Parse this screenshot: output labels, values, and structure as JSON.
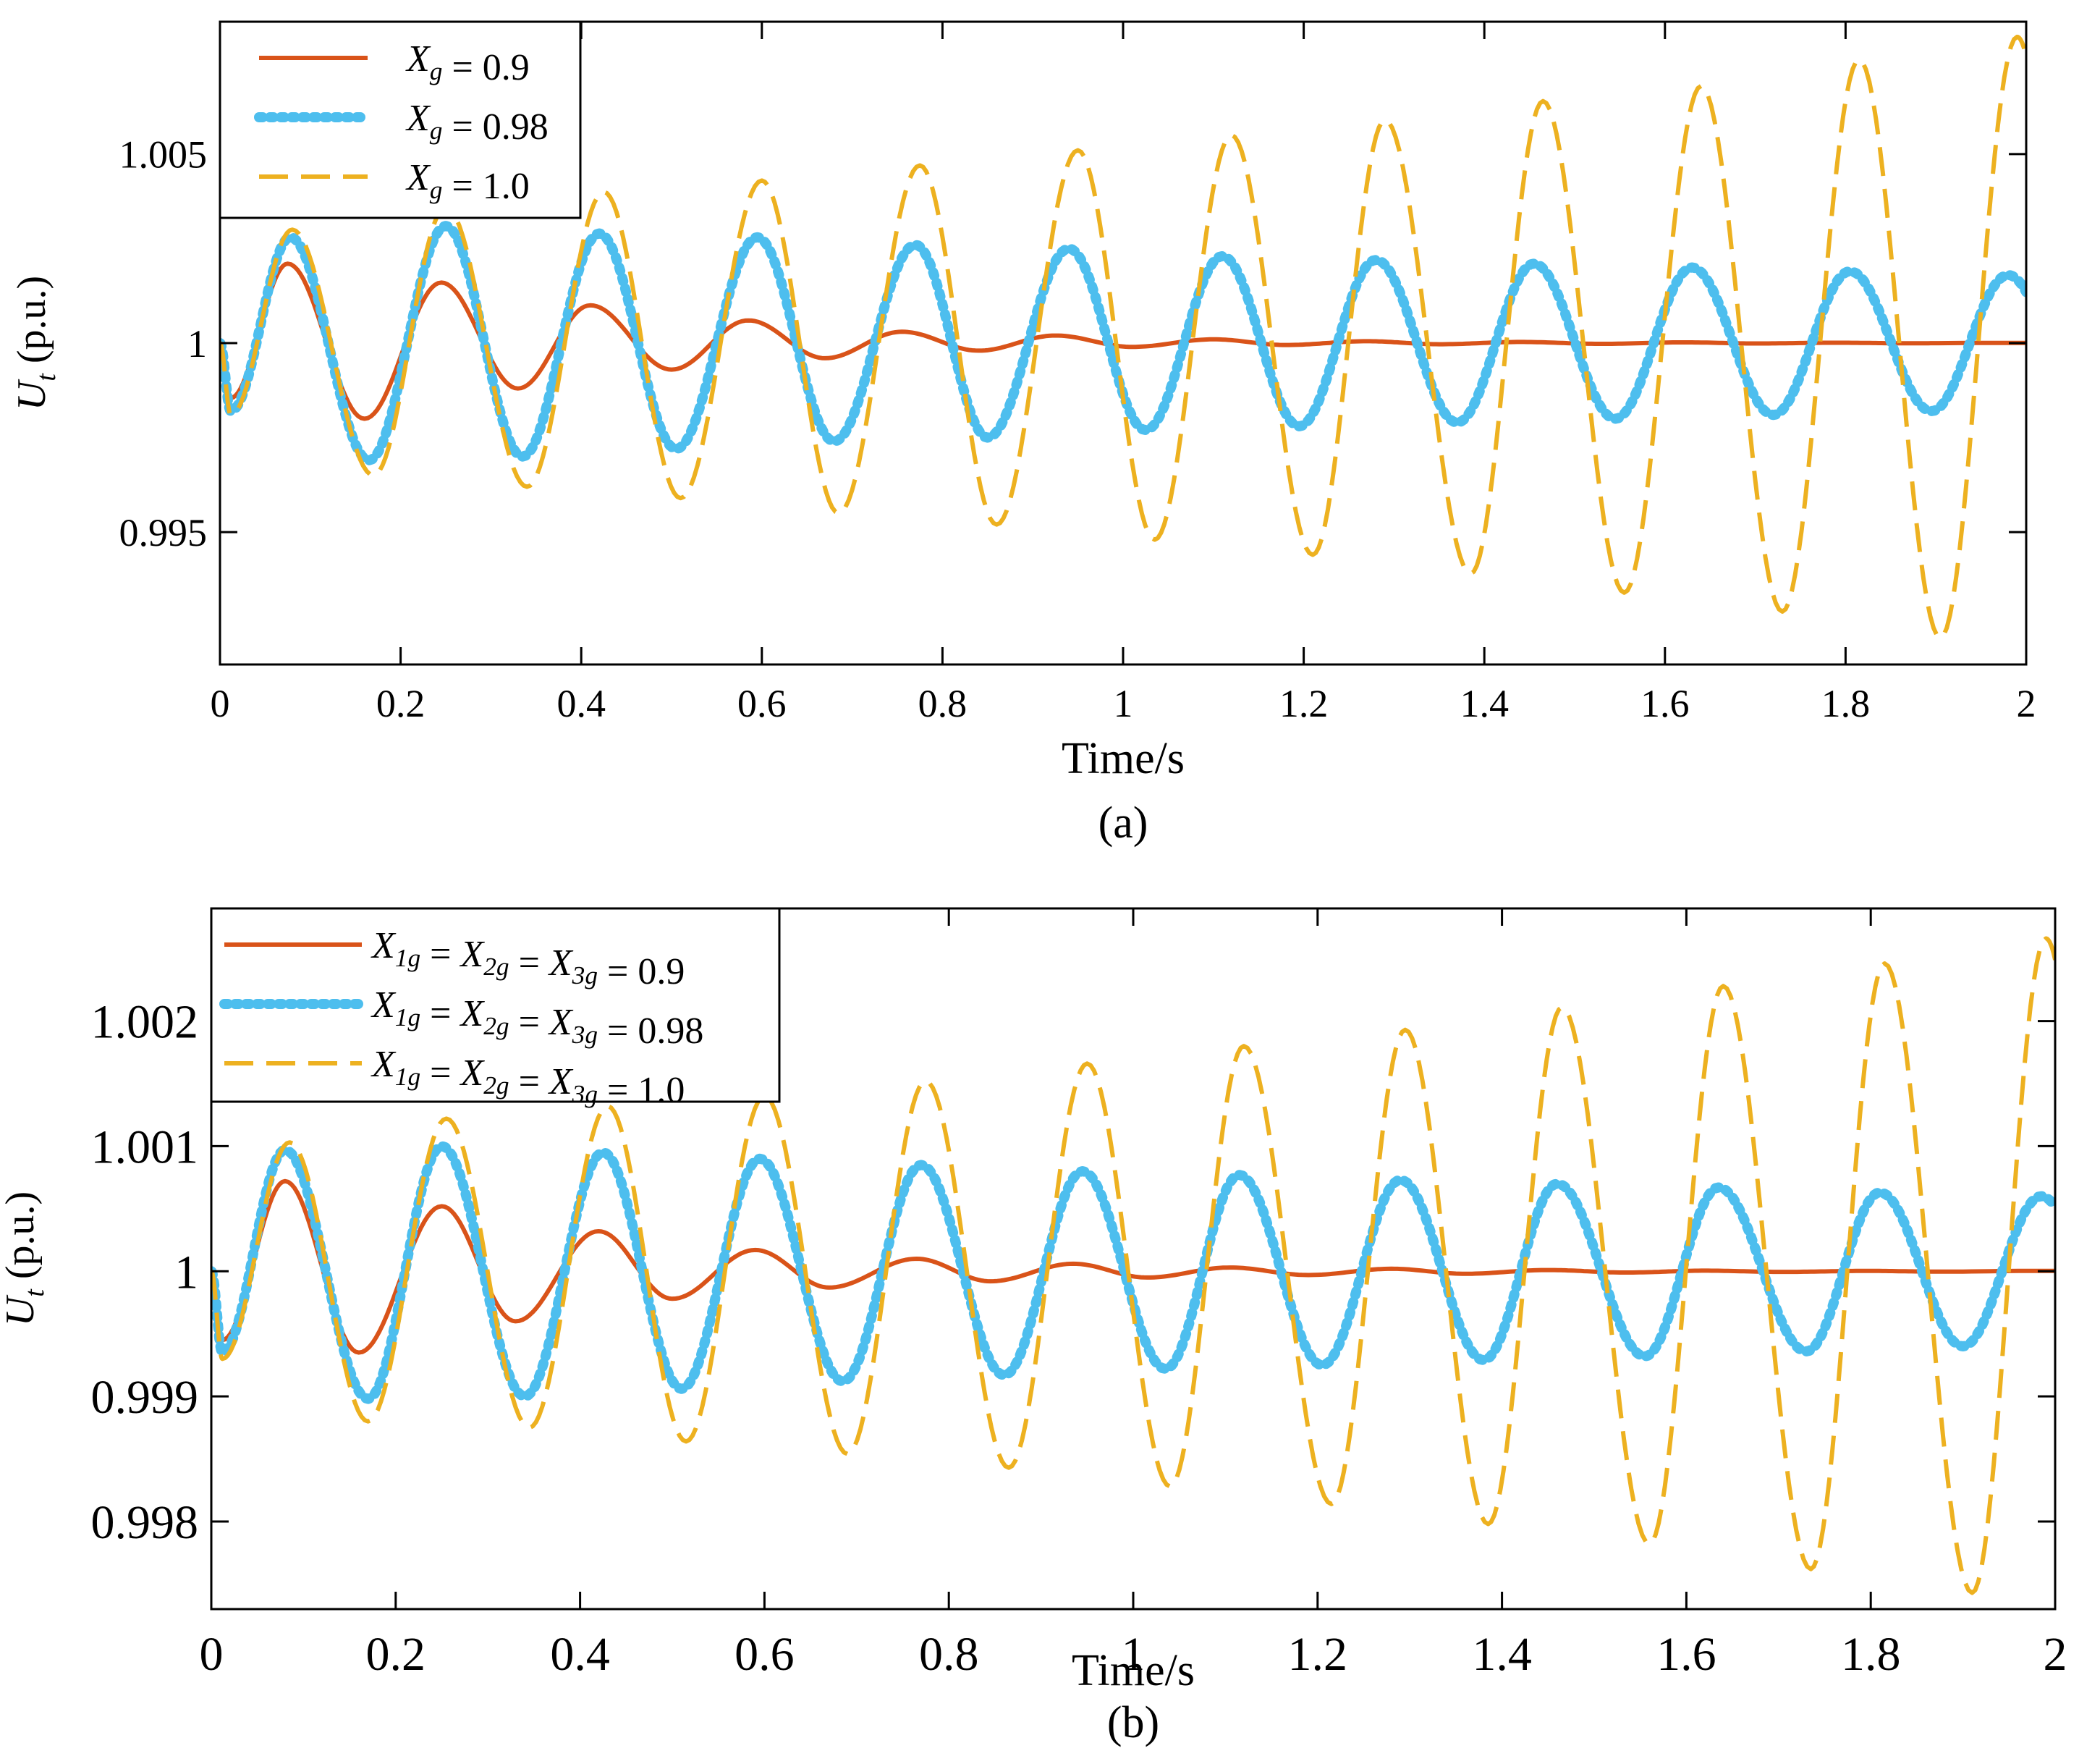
{
  "chart_data": [
    {
      "type": "line",
      "panel_label": "(a)",
      "xlabel": "Time/s",
      "ylabel": "U_t (p.u.)",
      "ylabel_main": "U",
      "ylabel_sub": "t",
      "ylabel_rest": " (p.u.)",
      "xlim": [
        0,
        2
      ],
      "ylim": [
        0.9915,
        1.0085
      ],
      "xticks": [
        0,
        0.2,
        0.4,
        0.6,
        0.8,
        1,
        1.2,
        1.4,
        1.6,
        1.8,
        2
      ],
      "xtick_labels": [
        "0",
        "0.2",
        "0.4",
        "0.6",
        "0.8",
        "1",
        "1.2",
        "1.4",
        "1.6",
        "1.8",
        "2"
      ],
      "yticks": [
        0.995,
        1,
        1.005
      ],
      "ytick_labels": [
        "0.995",
        "1",
        "1.005"
      ],
      "legend_position": "top-left",
      "oscillation": {
        "period_s": 0.174,
        "phase_s": 0.0325
      },
      "series": [
        {
          "name": "X_g = 0.9",
          "legend_parts": [
            {
              "t": "X",
              "sub": "g"
            },
            {
              "t": " = 0.9",
              "plain": true
            }
          ],
          "color": "#D95319",
          "style": "solid",
          "initial_dip": 0.99855,
          "peaks": [
            {
              "t": 0.075,
              "v": 1.0021
            },
            {
              "t": 0.245,
              "v": 1.0016
            },
            {
              "t": 0.41,
              "v": 1.001
            },
            {
              "t": 0.585,
              "v": 1.0006
            },
            {
              "t": 0.755,
              "v": 1.0003
            },
            {
              "t": 0.925,
              "v": 1.0002
            },
            {
              "t": 1.1,
              "v": 1.0001
            },
            {
              "t": 1.27,
              "v": 1.00005
            },
            {
              "t": 1.44,
              "v": 1.00003
            },
            {
              "t": 1.62,
              "v": 1.00002
            },
            {
              "t": 1.79,
              "v": 1.00001
            }
          ],
          "troughs": [
            {
              "t": 0.16,
              "v": 0.998
            },
            {
              "t": 0.33,
              "v": 0.9988
            },
            {
              "t": 0.5,
              "v": 0.9993
            },
            {
              "t": 0.67,
              "v": 0.9996
            },
            {
              "t": 0.84,
              "v": 0.9998
            },
            {
              "t": 1.01,
              "v": 0.9999
            },
            {
              "t": 1.18,
              "v": 0.99995
            },
            {
              "t": 1.35,
              "v": 0.99997
            },
            {
              "t": 1.53,
              "v": 0.99998
            },
            {
              "t": 1.7,
              "v": 0.99999
            },
            {
              "t": 1.87,
              "v": 0.999995
            }
          ]
        },
        {
          "name": "X_g = 0.98",
          "legend_parts": [
            {
              "t": "X",
              "sub": "g"
            },
            {
              "t": " = 0.98",
              "plain": true
            }
          ],
          "color": "#4DBEEE",
          "style": "dotted",
          "initial_dip": 0.9982,
          "peaks": [
            {
              "t": 0.078,
              "v": 1.0028
            },
            {
              "t": 0.25,
              "v": 1.0031
            },
            {
              "t": 0.42,
              "v": 1.0029
            },
            {
              "t": 0.595,
              "v": 1.0028
            },
            {
              "t": 0.77,
              "v": 1.0026
            },
            {
              "t": 0.94,
              "v": 1.0025
            },
            {
              "t": 1.11,
              "v": 1.0023
            },
            {
              "t": 1.28,
              "v": 1.0022
            },
            {
              "t": 1.455,
              "v": 1.0021
            },
            {
              "t": 1.63,
              "v": 1.002
            },
            {
              "t": 1.805,
              "v": 1.0019
            },
            {
              "t": 1.98,
              "v": 1.0018
            }
          ],
          "troughs": [
            {
              "t": 0.165,
              "v": 0.9969
            },
            {
              "t": 0.335,
              "v": 0.997
            },
            {
              "t": 0.505,
              "v": 0.9972
            },
            {
              "t": 0.68,
              "v": 0.9974
            },
            {
              "t": 0.85,
              "v": 0.9975
            },
            {
              "t": 1.025,
              "v": 0.9977
            },
            {
              "t": 1.195,
              "v": 0.9978
            },
            {
              "t": 1.37,
              "v": 0.9979
            },
            {
              "t": 1.545,
              "v": 0.998
            },
            {
              "t": 1.72,
              "v": 0.9981
            },
            {
              "t": 1.895,
              "v": 0.9982
            }
          ]
        },
        {
          "name": "X_g = 1.0",
          "legend_parts": [
            {
              "t": "X",
              "sub": "g"
            },
            {
              "t": " = 1.0",
              "plain": true
            }
          ],
          "color": "#EDB120",
          "style": "dashed",
          "initial_dip": 0.9981,
          "peaks": [
            {
              "t": 0.08,
              "v": 1.003
            },
            {
              "t": 0.25,
              "v": 1.0036
            },
            {
              "t": 0.425,
              "v": 1.004
            },
            {
              "t": 0.6,
              "v": 1.0043
            },
            {
              "t": 0.775,
              "v": 1.0047
            },
            {
              "t": 0.95,
              "v": 1.0051
            },
            {
              "t": 1.12,
              "v": 1.0055
            },
            {
              "t": 1.29,
              "v": 1.0059
            },
            {
              "t": 1.465,
              "v": 1.0064
            },
            {
              "t": 1.64,
              "v": 1.0068
            },
            {
              "t": 1.815,
              "v": 1.0075
            },
            {
              "t": 1.99,
              "v": 1.0081
            }
          ],
          "troughs": [
            {
              "t": 0.17,
              "v": 0.9965
            },
            {
              "t": 0.34,
              "v": 0.9962
            },
            {
              "t": 0.51,
              "v": 0.9959
            },
            {
              "t": 0.685,
              "v": 0.9955
            },
            {
              "t": 0.86,
              "v": 0.9952
            },
            {
              "t": 1.035,
              "v": 0.9948
            },
            {
              "t": 1.21,
              "v": 0.9944
            },
            {
              "t": 1.385,
              "v": 0.9939
            },
            {
              "t": 1.555,
              "v": 0.9934
            },
            {
              "t": 1.73,
              "v": 0.9929
            },
            {
              "t": 1.905,
              "v": 0.9922
            }
          ]
        }
      ]
    },
    {
      "type": "line",
      "panel_label": "(b)",
      "xlabel": "Time/s",
      "ylabel": "U_t (p.u.)",
      "ylabel_main": "U",
      "ylabel_sub": "t",
      "ylabel_rest": " (p.u.)",
      "xlim": [
        0,
        2
      ],
      "ylim": [
        0.9973,
        1.0029
      ],
      "xticks": [
        0,
        0.2,
        0.4,
        0.6,
        0.8,
        1,
        1.2,
        1.4,
        1.6,
        1.8,
        2
      ],
      "xtick_labels": [
        "0",
        "0.2",
        "0.4",
        "0.6",
        "0.8",
        "1",
        "1.2",
        "1.4",
        "1.6",
        "1.8",
        "2"
      ],
      "yticks": [
        0.998,
        0.999,
        1,
        1.001,
        1.002
      ],
      "ytick_labels": [
        "0.998",
        "0.999",
        "1",
        "1.001",
        "1.002"
      ],
      "legend_position": "top-left",
      "oscillation": {
        "period_s": 0.174,
        "phase_s": 0.0325
      },
      "series": [
        {
          "name": "X_1g = X_2g = X_3g = 0.9",
          "legend_parts": [
            {
              "t": "X",
              "sub": "1g"
            },
            {
              "t": " = ",
              "plain": true
            },
            {
              "t": "X",
              "sub": "2g"
            },
            {
              "t": " = ",
              "plain": true
            },
            {
              "t": "X",
              "sub": "3g"
            },
            {
              "t": " = 0.9",
              "plain": true
            }
          ],
          "color": "#D95319",
          "style": "solid",
          "initial_dip": 0.99945,
          "peaks": [
            {
              "t": 0.08,
              "v": 1.00072
            },
            {
              "t": 0.25,
              "v": 1.00052
            },
            {
              "t": 0.42,
              "v": 1.00032
            },
            {
              "t": 0.59,
              "v": 1.00017
            },
            {
              "t": 0.765,
              "v": 1.0001
            },
            {
              "t": 0.935,
              "v": 1.00006
            },
            {
              "t": 1.105,
              "v": 1.00003
            },
            {
              "t": 1.28,
              "v": 1.00002
            },
            {
              "t": 1.45,
              "v": 1.00001
            },
            {
              "t": 1.62,
              "v": 1.000005
            },
            {
              "t": 1.795,
              "v": 1.000003
            }
          ],
          "troughs": [
            {
              "t": 0.16,
              "v": 0.99935
            },
            {
              "t": 0.33,
              "v": 0.9996
            },
            {
              "t": 0.5,
              "v": 0.99978
            },
            {
              "t": 0.67,
              "v": 0.99987
            },
            {
              "t": 0.845,
              "v": 0.99992
            },
            {
              "t": 1.015,
              "v": 0.99995
            },
            {
              "t": 1.19,
              "v": 0.99997
            },
            {
              "t": 1.36,
              "v": 0.99998
            },
            {
              "t": 1.535,
              "v": 0.99999
            },
            {
              "t": 1.705,
              "v": 0.999995
            },
            {
              "t": 1.88,
              "v": 0.999997
            }
          ]
        },
        {
          "name": "X_1g = X_2g = X_3g = 0.98",
          "legend_parts": [
            {
              "t": "X",
              "sub": "1g"
            },
            {
              "t": " = ",
              "plain": true
            },
            {
              "t": "X",
              "sub": "2g"
            },
            {
              "t": " = ",
              "plain": true
            },
            {
              "t": "X",
              "sub": "3g"
            },
            {
              "t": " = 0.98",
              "plain": true
            }
          ],
          "color": "#4DBEEE",
          "style": "dotted",
          "initial_dip": 0.99935,
          "peaks": [
            {
              "t": 0.08,
              "v": 1.00097
            },
            {
              "t": 0.25,
              "v": 1.001
            },
            {
              "t": 0.425,
              "v": 1.00095
            },
            {
              "t": 0.595,
              "v": 1.0009
            },
            {
              "t": 0.77,
              "v": 1.00085
            },
            {
              "t": 0.945,
              "v": 1.0008
            },
            {
              "t": 1.115,
              "v": 1.00077
            },
            {
              "t": 1.29,
              "v": 1.00073
            },
            {
              "t": 1.46,
              "v": 1.0007
            },
            {
              "t": 1.635,
              "v": 1.00067
            },
            {
              "t": 1.81,
              "v": 1.00063
            },
            {
              "t": 1.985,
              "v": 1.0006
            }
          ],
          "troughs": [
            {
              "t": 0.17,
              "v": 0.99898
            },
            {
              "t": 0.34,
              "v": 0.999
            },
            {
              "t": 0.51,
              "v": 0.99906
            },
            {
              "t": 0.685,
              "v": 0.99912
            },
            {
              "t": 0.86,
              "v": 0.99917
            },
            {
              "t": 1.035,
              "v": 0.99922
            },
            {
              "t": 1.205,
              "v": 0.99925
            },
            {
              "t": 1.38,
              "v": 0.99929
            },
            {
              "t": 1.555,
              "v": 0.99932
            },
            {
              "t": 1.73,
              "v": 0.99936
            },
            {
              "t": 1.9,
              "v": 0.9994
            }
          ]
        },
        {
          "name": "X_1g = X_2g = X_3g = 1.0",
          "legend_parts": [
            {
              "t": "X",
              "sub": "1g"
            },
            {
              "t": " = ",
              "plain": true
            },
            {
              "t": "X",
              "sub": "2g"
            },
            {
              "t": " = ",
              "plain": true
            },
            {
              "t": "X",
              "sub": "3g"
            },
            {
              "t": " = 1.0",
              "plain": true
            }
          ],
          "color": "#EDB120",
          "style": "dashed",
          "initial_dip": 0.9993,
          "peaks": [
            {
              "t": 0.085,
              "v": 1.00103
            },
            {
              "t": 0.255,
              "v": 1.00122
            },
            {
              "t": 0.43,
              "v": 1.00132
            },
            {
              "t": 0.6,
              "v": 1.0014
            },
            {
              "t": 0.775,
              "v": 1.00152
            },
            {
              "t": 0.95,
              "v": 1.00166
            },
            {
              "t": 1.12,
              "v": 1.0018
            },
            {
              "t": 1.295,
              "v": 1.00193
            },
            {
              "t": 1.465,
              "v": 1.00211
            },
            {
              "t": 1.64,
              "v": 1.00228
            },
            {
              "t": 1.815,
              "v": 1.00246
            },
            {
              "t": 1.99,
              "v": 1.00266
            }
          ],
          "troughs": [
            {
              "t": 0.17,
              "v": 0.9988
            },
            {
              "t": 0.345,
              "v": 0.99875
            },
            {
              "t": 0.515,
              "v": 0.99864
            },
            {
              "t": 0.69,
              "v": 0.99854
            },
            {
              "t": 0.865,
              "v": 0.99843
            },
            {
              "t": 1.04,
              "v": 0.99828
            },
            {
              "t": 1.215,
              "v": 0.99814
            },
            {
              "t": 1.385,
              "v": 0.99798
            },
            {
              "t": 1.56,
              "v": 0.99782
            },
            {
              "t": 1.735,
              "v": 0.99762
            },
            {
              "t": 1.91,
              "v": 0.99743
            }
          ]
        }
      ]
    }
  ]
}
